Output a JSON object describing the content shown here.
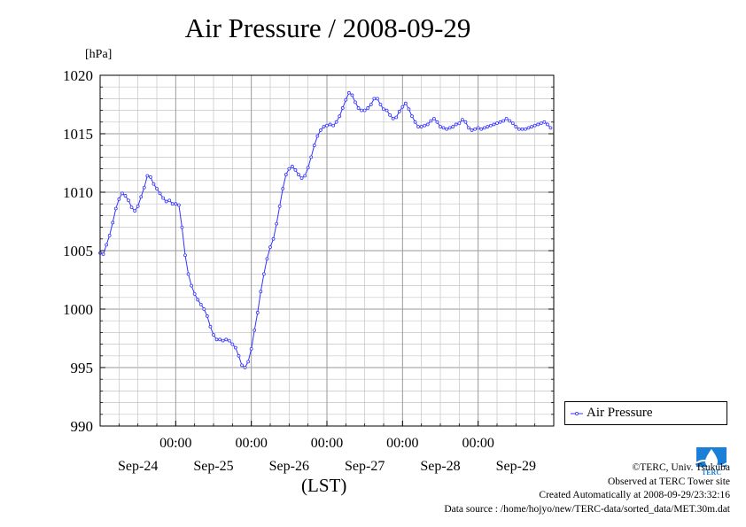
{
  "chart_data": {
    "type": "line",
    "title": "Air Pressure / 2008-09-29",
    "ylabel": "[hPa]",
    "xlabel": "(LST)",
    "ylim": [
      990,
      1020
    ],
    "yticks": [
      990,
      995,
      1000,
      1005,
      1010,
      1015,
      1020
    ],
    "xlim": [
      0,
      144
    ],
    "x_tick_values": [
      24,
      48,
      72,
      96,
      120
    ],
    "x_tick_labels": [
      "00:00",
      "00:00",
      "00:00",
      "00:00",
      "00:00"
    ],
    "day_labels": [
      {
        "x": 12,
        "label": "Sep-24"
      },
      {
        "x": 36,
        "label": "Sep-25"
      },
      {
        "x": 60,
        "label": "Sep-26"
      },
      {
        "x": 84,
        "label": "Sep-27"
      },
      {
        "x": 108,
        "label": "Sep-28"
      },
      {
        "x": 132,
        "label": "Sep-29"
      }
    ],
    "grid": true,
    "legend_position": "outside-right-bottom",
    "series": [
      {
        "name": "Air Pressure",
        "color": "#3333ff",
        "x": [
          0,
          1,
          2,
          3,
          4,
          5,
          6,
          7,
          8,
          9,
          10,
          11,
          12,
          13,
          14,
          15,
          16,
          17,
          18,
          19,
          20,
          21,
          22,
          23,
          24,
          25,
          26,
          27,
          28,
          29,
          30,
          31,
          32,
          33,
          34,
          35,
          36,
          37,
          38,
          39,
          40,
          41,
          42,
          43,
          44,
          45,
          46,
          47,
          48,
          49,
          50,
          51,
          52,
          53,
          54,
          55,
          56,
          57,
          58,
          59,
          60,
          61,
          62,
          63,
          64,
          65,
          66,
          67,
          68,
          69,
          70,
          71,
          72,
          73,
          74,
          75,
          76,
          77,
          78,
          79,
          80,
          81,
          82,
          83,
          84,
          85,
          86,
          87,
          88,
          89,
          90,
          91,
          92,
          93,
          94,
          95,
          96,
          97,
          98,
          99,
          100,
          101,
          102,
          103,
          104,
          105,
          106,
          107,
          108,
          109,
          110,
          111,
          112,
          113,
          114,
          115,
          116,
          117,
          118,
          119,
          120,
          121,
          122,
          123,
          124,
          125,
          126,
          127,
          128,
          129,
          130,
          131,
          132,
          133,
          134,
          135,
          136,
          137,
          138,
          139,
          140,
          141,
          142,
          143
        ],
        "values": [
          1004.8,
          1004.7,
          1005.5,
          1006.3,
          1007.4,
          1008.6,
          1009.4,
          1009.9,
          1009.7,
          1009.3,
          1008.7,
          1008.4,
          1008.8,
          1009.6,
          1010.4,
          1011.4,
          1011.3,
          1010.7,
          1010.3,
          1009.9,
          1009.5,
          1009.2,
          1009.3,
          1009.0,
          1009.0,
          1008.9,
          1007.0,
          1004.6,
          1003.0,
          1002.0,
          1001.3,
          1000.8,
          1000.4,
          1000.0,
          999.4,
          998.5,
          997.8,
          997.4,
          997.4,
          997.3,
          997.4,
          997.3,
          997.0,
          996.7,
          996.0,
          995.2,
          995.0,
          995.5,
          996.6,
          998.2,
          999.7,
          1001.5,
          1003.0,
          1004.3,
          1005.3,
          1006.0,
          1007.3,
          1008.8,
          1010.3,
          1011.5,
          1012.0,
          1012.2,
          1011.9,
          1011.5,
          1011.2,
          1011.4,
          1012.1,
          1013.0,
          1014.0,
          1014.8,
          1015.3,
          1015.6,
          1015.7,
          1015.8,
          1015.7,
          1016.0,
          1016.5,
          1017.2,
          1017.9,
          1018.5,
          1018.3,
          1017.7,
          1017.2,
          1017.0,
          1017.0,
          1017.2,
          1017.5,
          1018.0,
          1018.0,
          1017.5,
          1017.1,
          1017.0,
          1016.6,
          1016.3,
          1016.4,
          1016.9,
          1017.3,
          1017.6,
          1017.1,
          1016.5,
          1016.0,
          1015.6,
          1015.6,
          1015.7,
          1015.8,
          1016.1,
          1016.3,
          1016.0,
          1015.6,
          1015.5,
          1015.4,
          1015.5,
          1015.6,
          1015.8,
          1015.9,
          1016.2,
          1016.0,
          1015.5,
          1015.3,
          1015.4,
          1015.5,
          1015.4,
          1015.5,
          1015.6,
          1015.7,
          1015.8,
          1015.9,
          1016.0,
          1016.1,
          1016.3,
          1016.1,
          1015.9,
          1015.6,
          1015.4,
          1015.4,
          1015.4,
          1015.5,
          1015.6,
          1015.7,
          1015.8,
          1015.9,
          1016.0,
          1015.8,
          1015.5
        ]
      }
    ]
  },
  "credits": {
    "copyright": "©TERC, Univ. Tsukuba",
    "observed": "Observed at TERC Tower site",
    "created": "Created Automatically at 2008-09-29/23:32:16",
    "source": "Data source : /home/hojyo/new/TERC-data/sorted_data/MET.30m.dat"
  },
  "logo": {
    "text": "TERC",
    "color": "#1a7fd6"
  }
}
